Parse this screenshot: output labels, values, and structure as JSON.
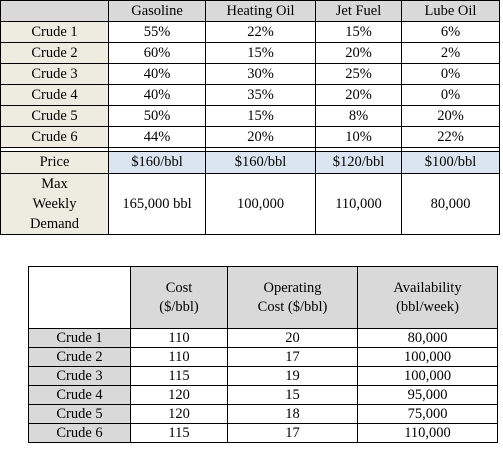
{
  "table1": {
    "columns": [
      "Gasoline",
      "Heating Oil",
      "Jet Fuel",
      "Lube Oil"
    ],
    "rows": [
      {
        "label": "Crude 1",
        "values": [
          "55%",
          "22%",
          "15%",
          "6%"
        ]
      },
      {
        "label": "Crude 2",
        "values": [
          "60%",
          "15%",
          "20%",
          "2%"
        ]
      },
      {
        "label": "Crude 3",
        "values": [
          "40%",
          "30%",
          "25%",
          "0%"
        ]
      },
      {
        "label": "Crude 4",
        "values": [
          "40%",
          "35%",
          "20%",
          "0%"
        ]
      },
      {
        "label": "Crude 5",
        "values": [
          "50%",
          "15%",
          "8%",
          "20%"
        ]
      },
      {
        "label": "Crude 6",
        "values": [
          "44%",
          "20%",
          "10%",
          "22%"
        ]
      }
    ],
    "price": {
      "label": "Price",
      "values": [
        "$160/bbl",
        "$160/bbl",
        "$120/bbl",
        "$100/bbl"
      ]
    },
    "demand": {
      "label": "Max Weekly Demand",
      "values": [
        "165,000 bbl",
        "100,000",
        "110,000",
        "80,000"
      ]
    }
  },
  "table2": {
    "columns": [
      "Cost ($/bbl)",
      "Operating Cost ($/bbl)",
      "Availability (bbl/week)"
    ],
    "rows": [
      {
        "label": "Crude 1",
        "values": [
          "110",
          "20",
          "80,000"
        ]
      },
      {
        "label": "Crude 2",
        "values": [
          "110",
          "17",
          "100,000"
        ]
      },
      {
        "label": "Crude 3",
        "values": [
          "115",
          "19",
          "100,000"
        ]
      },
      {
        "label": "Crude 4",
        "values": [
          "120",
          "15",
          "95,000"
        ]
      },
      {
        "label": "Crude 5",
        "values": [
          "120",
          "18",
          "75,000"
        ]
      },
      {
        "label": "Crude 6",
        "values": [
          "115",
          "17",
          "110,000"
        ]
      }
    ]
  }
}
